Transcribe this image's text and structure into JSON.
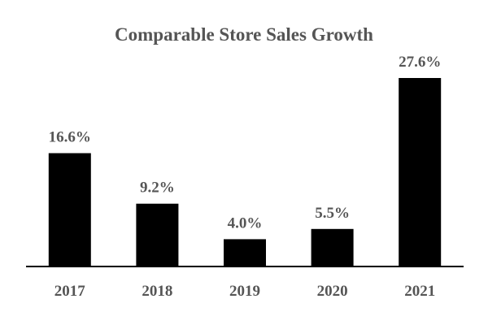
{
  "chart_data": {
    "type": "bar",
    "title": "Comparable Store Sales Growth",
    "categories": [
      "2017",
      "2018",
      "2019",
      "2020",
      "2021"
    ],
    "values": [
      16.6,
      9.2,
      4.0,
      5.5,
      27.6
    ],
    "value_labels": [
      "16.6%",
      "9.2%",
      "4.0%",
      "5.5%",
      "27.6%"
    ],
    "xlabel": "",
    "ylabel": "",
    "ylim": [
      0,
      30
    ],
    "grid": false,
    "legend": "none",
    "bar_color": "#000000",
    "text_color": "#555555",
    "axis_color": "#000000"
  }
}
